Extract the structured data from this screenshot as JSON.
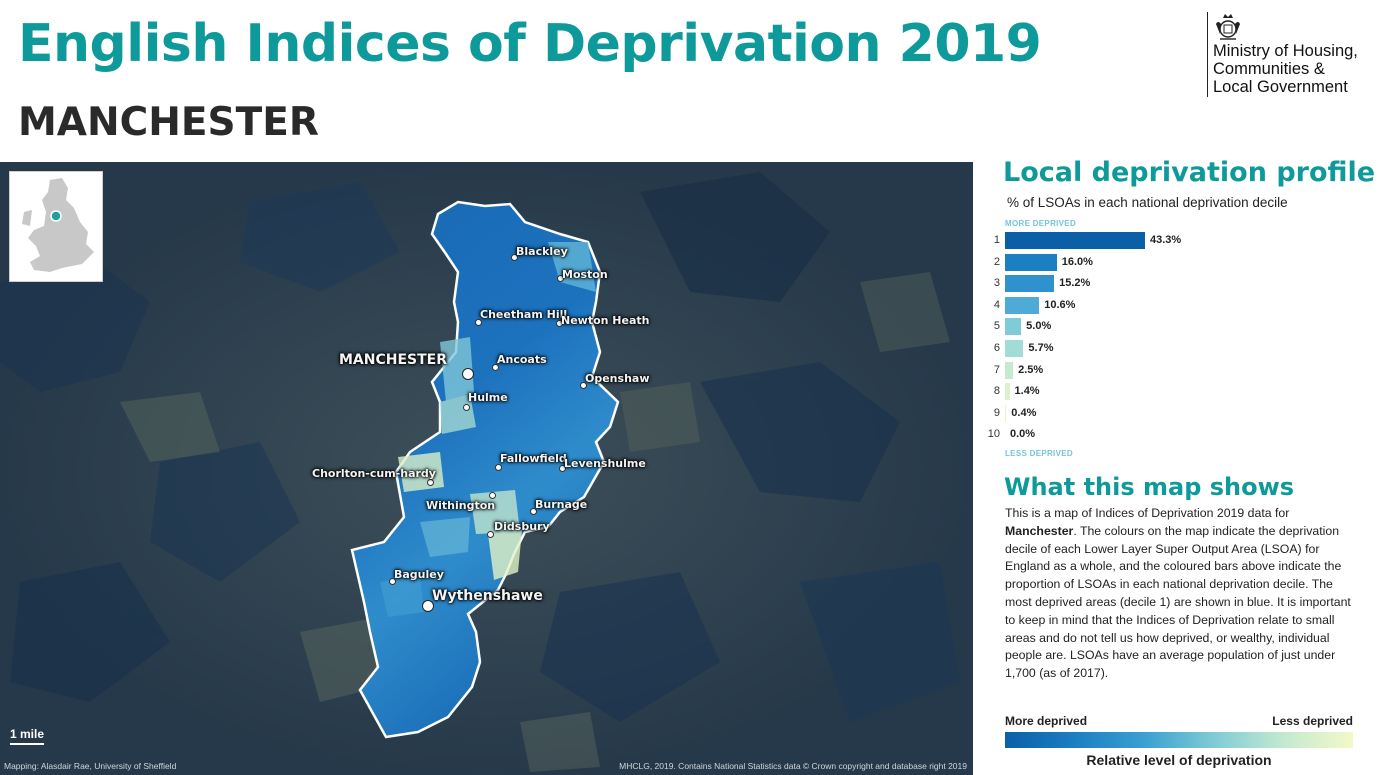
{
  "header": {
    "title": "English Indices of Deprivation 2019",
    "subtitle": "MANCHESTER",
    "logo_lines": [
      "Ministry of Housing,",
      "Communities &",
      "Local Government"
    ]
  },
  "map": {
    "places": [
      {
        "name": "Blackley",
        "size": "small"
      },
      {
        "name": "Moston",
        "size": "small"
      },
      {
        "name": "Cheetham Hill",
        "size": "small"
      },
      {
        "name": "Newton Heath",
        "size": "small"
      },
      {
        "name": "MANCHESTER",
        "size": "large"
      },
      {
        "name": "Ancoats",
        "size": "small"
      },
      {
        "name": "Openshaw",
        "size": "small"
      },
      {
        "name": "Hulme",
        "size": "small"
      },
      {
        "name": "Fallowfield",
        "size": "small"
      },
      {
        "name": "Levenshulme",
        "size": "small"
      },
      {
        "name": "Chorlton-cum-hardy",
        "size": "small"
      },
      {
        "name": "Withington",
        "size": "small"
      },
      {
        "name": "Burnage",
        "size": "small"
      },
      {
        "name": "Didsbury",
        "size": "small"
      },
      {
        "name": "Baguley",
        "size": "small"
      },
      {
        "name": "Wythenshawe",
        "size": "large"
      }
    ],
    "scale_label": "1 mile",
    "credit_left": "Mapping: Alasdair Rae, University of Sheffield",
    "credit_right": "MHCLG, 2019. Contains National Statistics data © Crown copyright and database right 2019"
  },
  "profile": {
    "title": "Local deprivation profile",
    "subtitle": "% of LSOAs in each national deprivation decile",
    "more_label": "MORE DEPRIVED",
    "less_label": "LESS DEPRIVED"
  },
  "chart_data": {
    "type": "bar",
    "orientation": "horizontal",
    "categories": [
      "1",
      "2",
      "3",
      "4",
      "5",
      "6",
      "7",
      "8",
      "9",
      "10"
    ],
    "values": [
      43.3,
      16.0,
      15.2,
      10.6,
      5.0,
      5.7,
      2.5,
      1.4,
      0.4,
      0.0
    ],
    "labels": [
      "43.3%",
      "16.0%",
      "15.2%",
      "10.6%",
      "5.0%",
      "5.7%",
      "2.5%",
      "1.4%",
      "0.4%",
      "0.0%"
    ],
    "colors": [
      "#0b5fa6",
      "#1b7fc1",
      "#2f92cf",
      "#4eaad6",
      "#7fcbd6",
      "#a3dcd6",
      "#c6ead1",
      "#dcf2cc",
      "#eaf6c9",
      "#f4f8c9"
    ],
    "title": "Local deprivation profile",
    "xlabel": "% of LSOAs in each national deprivation decile",
    "ylabel": "",
    "xlim": [
      0,
      43.3
    ]
  },
  "info": {
    "title": "What this map shows",
    "p_before": "This is a map of Indices of Deprivation 2019 data for ",
    "p_bold": "Manchester",
    "p_after": ". The colours on the map indicate the deprivation decile of each Lower Layer Super Output Area (LSOA) for England as a whole, and the coloured bars above indicate the proportion of LSOAs in each national deprivation decile. The most deprived areas (decile 1) are shown in blue. It is important to keep in mind that the Indices of Deprivation relate to small areas and do not tell us how deprived, or wealthy, individual people are. LSOAs have an average population of just under 1,700 (as of 2017)."
  },
  "legend": {
    "more": "More deprived",
    "less": "Less deprived",
    "caption": "Relative level of deprivation"
  }
}
